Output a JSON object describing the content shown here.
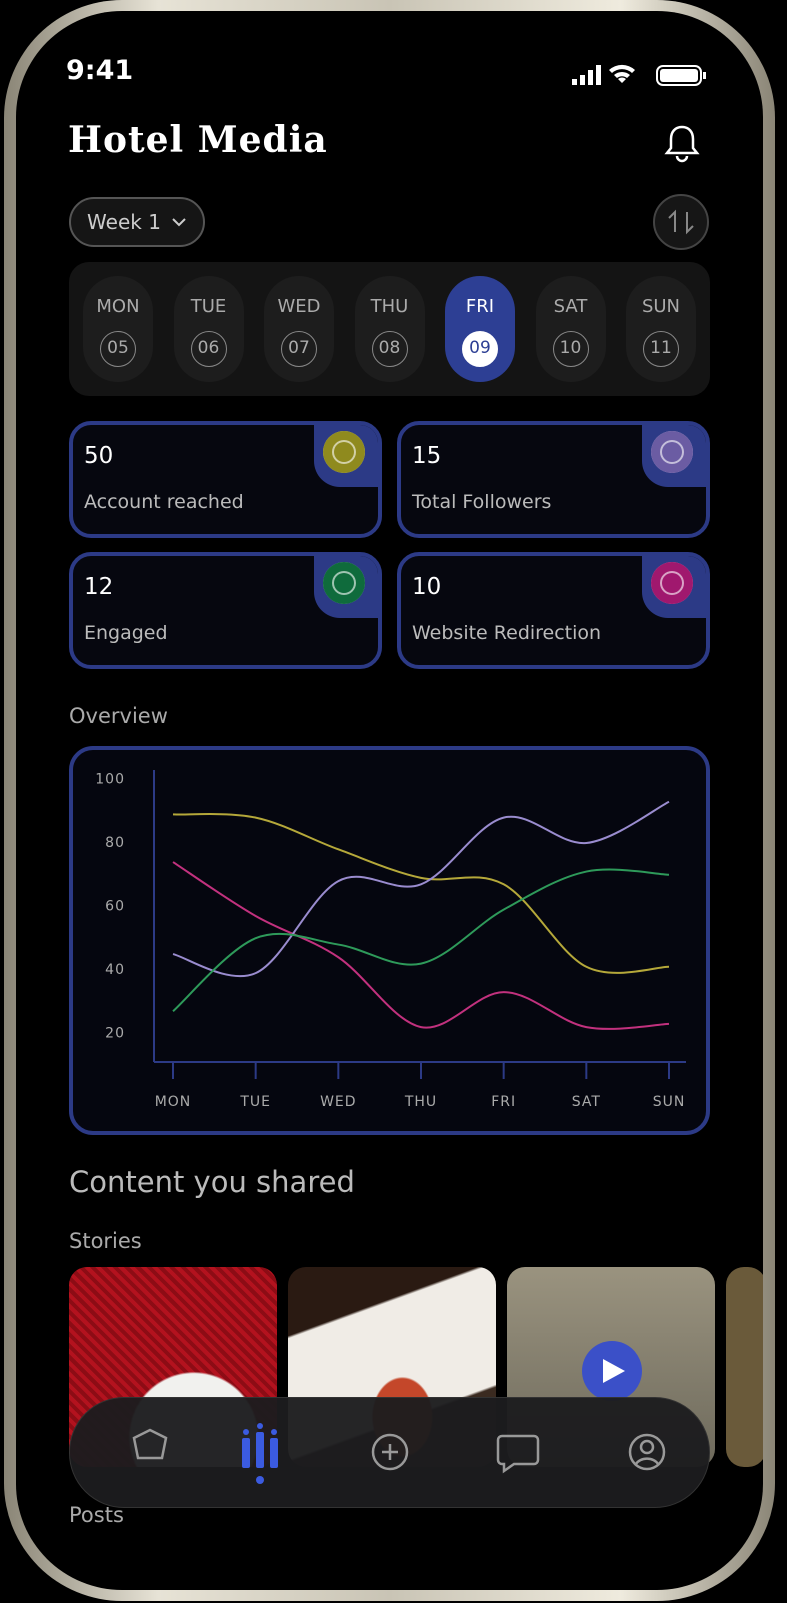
{
  "status_bar": {
    "time": "9:41"
  },
  "header": {
    "title": "Hotel Media"
  },
  "week_selector": {
    "label": "Week 1"
  },
  "days": [
    {
      "day": "MON",
      "date": "05"
    },
    {
      "day": "TUE",
      "date": "06"
    },
    {
      "day": "WED",
      "date": "07"
    },
    {
      "day": "THU",
      "date": "08"
    },
    {
      "day": "FRI",
      "date": "09",
      "selected": true
    },
    {
      "day": "SAT",
      "date": "10"
    },
    {
      "day": "SUN",
      "date": "11"
    }
  ],
  "stats": [
    {
      "value": 50,
      "label": "Account reached",
      "icon_color": "#8f8a1e"
    },
    {
      "value": 15,
      "label": "Total Followers",
      "icon_color": "#6b5ca3"
    },
    {
      "value": 12,
      "label": "Engaged",
      "icon_color": "#0f6b3c"
    },
    {
      "value": 10,
      "label": "Website Redirection",
      "icon_color": "#a0186e"
    }
  ],
  "overview": {
    "title": "Overview"
  },
  "chart_data": {
    "type": "line",
    "categories": [
      "MON",
      "TUE",
      "WED",
      "THU",
      "FRI",
      "SAT",
      "SUN"
    ],
    "series": [
      {
        "color": "#b5a83a",
        "values": [
          89,
          88,
          78,
          69,
          67,
          41,
          41
        ]
      },
      {
        "color": "#c2317e",
        "values": [
          74,
          57,
          44,
          22,
          33,
          22,
          23
        ]
      },
      {
        "color": "#9a8ccf",
        "values": [
          45,
          39,
          68,
          67,
          88,
          80,
          93
        ]
      },
      {
        "color": "#2e9a5a",
        "values": [
          27,
          50,
          48,
          42,
          59,
          71,
          70
        ]
      }
    ],
    "ylim": [
      11,
      103
    ],
    "yticks": [
      20,
      40,
      60,
      80,
      100
    ],
    "grid": false
  },
  "content": {
    "title": "Content you shared",
    "stories_title": "Stories",
    "posts_title": "Posts"
  }
}
